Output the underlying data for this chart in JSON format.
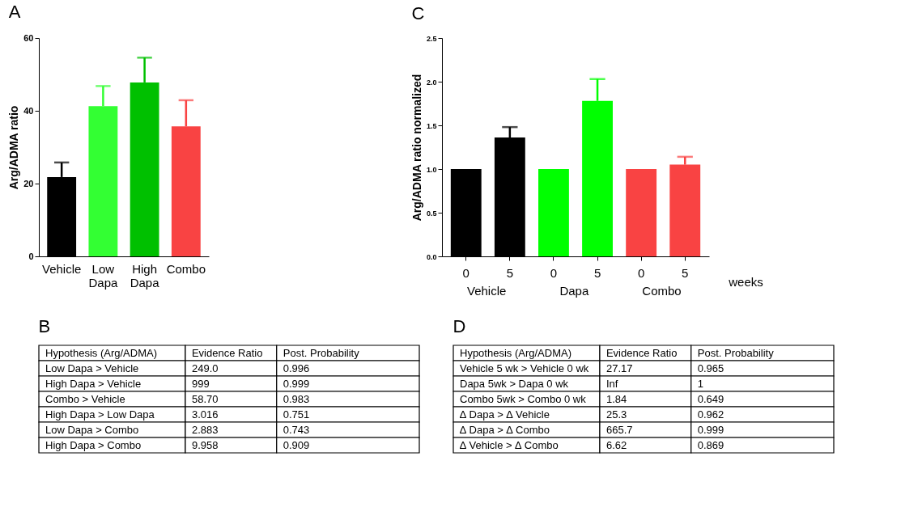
{
  "chart_data": [
    {
      "type": "bar",
      "title": "A",
      "ylabel": "Arg/ADMA ratio",
      "categories": [
        "Vehicle",
        "Low Dapa",
        "High Dapa",
        "Combo"
      ],
      "values": [
        21.8,
        41.3,
        47.8,
        35.7
      ],
      "errors": [
        [
          21.8,
          25.8
        ],
        [
          41.3,
          46.8
        ],
        [
          47.8,
          54.6
        ],
        [
          35.7,
          42.9
        ]
      ],
      "colors": [
        "#000000",
        "#33ff33",
        "#00c000",
        "#f94343"
      ],
      "ylim": [
        0,
        60
      ],
      "yticks": [
        0,
        20,
        40,
        60
      ],
      "grid": false
    },
    {
      "type": "other",
      "title": "B",
      "annotations": [
        "Hypothesis (Arg/ADMA)",
        "Evidence Ratio",
        "Post. Probability",
        "Low Dapa > Vehicle",
        "249.0",
        "0.996",
        "High Dapa > Vehicle",
        "999",
        "0.999",
        "Combo > Vehicle",
        "58.70",
        "0.983",
        "High Dapa > Low Dapa",
        "3.016",
        "0.751",
        "Low Dapa > Combo",
        "2.883",
        "0.743",
        "High Dapa > Combo",
        "9.958",
        "0.909"
      ]
    },
    {
      "type": "bar",
      "title": "C",
      "ylabel": "Arg/ADMA ratio normalized",
      "xlabel": "weeks",
      "categories": [
        "0",
        "5",
        "0",
        "5",
        "0",
        "5"
      ],
      "values": [
        1.0,
        1.36,
        1.0,
        1.78,
        1.0,
        1.05
      ],
      "errors": [
        null,
        [
          1.36,
          1.48
        ],
        null,
        [
          1.78,
          2.03
        ],
        null,
        [
          1.05,
          1.14
        ]
      ],
      "colors": [
        "#000000",
        "#000000",
        "#00ff00",
        "#00ff00",
        "#f94343",
        "#f94343"
      ],
      "annotations": [
        "Vehicle",
        "Dapa",
        "Combo"
      ],
      "ylim": [
        0,
        2.5
      ],
      "yticks": [
        {
          "value": 0,
          "label": "0.0"
        },
        {
          "value": 0.5,
          "label": "0.5"
        },
        {
          "value": 1,
          "label": "1.0"
        },
        {
          "value": 1.5,
          "label": "1.5"
        },
        {
          "value": 2,
          "label": "2.0"
        },
        {
          "value": 2.5,
          "label": "2.5"
        }
      ],
      "grid": false
    },
    {
      "type": "other",
      "title": "D",
      "annotations": [
        "Hypothesis (Arg/ADMA)",
        "Evidence Ratio",
        "Post. Probability",
        "Vehicle 5 wk > Vehicle 0 wk",
        "27.17",
        "0.965",
        "Dapa 5wk > Dapa 0 wk",
        "Inf",
        "1",
        "Combo 5wk > Combo 0 wk",
        "1.84",
        "0.649",
        "∆ Dapa > ∆ Vehicle",
        "25.3",
        "0.962",
        "∆ Dapa > ∆ Combo",
        "665.7",
        "0.999",
        "∆ Vehicle > ∆ Combo",
        "6.62",
        "0.869"
      ]
    }
  ]
}
